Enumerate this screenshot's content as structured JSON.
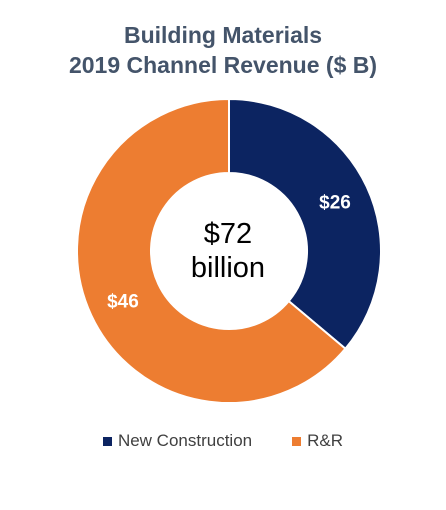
{
  "chart_data": {
    "type": "pie",
    "title_lines": [
      "Building Materials",
      "2019 Channel Revenue ($ B)"
    ],
    "categories": [
      "New Construction",
      "R&R"
    ],
    "values": [
      26,
      46
    ],
    "data_labels": [
      "$26",
      "$46"
    ],
    "colors": [
      "#0c2461",
      "#ed7d31"
    ],
    "center_label": {
      "line1": "$72",
      "line2": "billion"
    },
    "legend_position": "bottom",
    "donut": true
  }
}
